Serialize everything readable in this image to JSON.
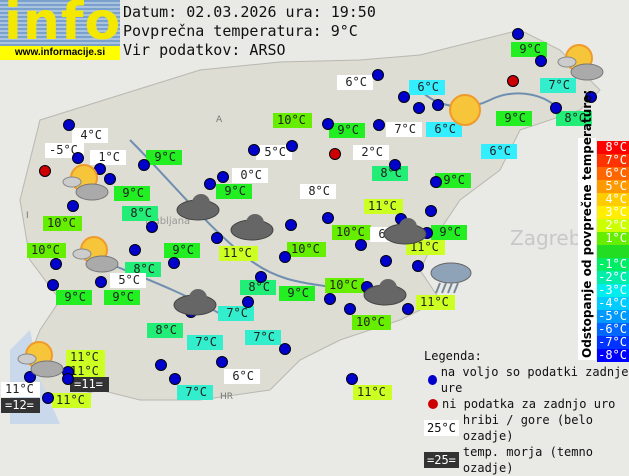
{
  "header": {
    "logo_text": "info",
    "url": "www.informacije.si",
    "date_line": "Datum: 02.03.2026 ura: 19:50",
    "avg_line": "Povprečna temperatura: 9°C",
    "source_line": "Vir podatkov: ARSO"
  },
  "colors": {
    "green": "#22ee22",
    "lgreen": "#66ee00",
    "ygreen": "#ccff22",
    "tgreen": "#22ee77",
    "teal": "#33eecc",
    "cyan": "#33eeff",
    "white": "#ffffff",
    "dark": "#333333"
  },
  "stations": [
    {
      "t": "9°C",
      "c": "green"
    },
    {
      "t": "6°C",
      "c": "white"
    },
    {
      "t": "6°C",
      "c": "cyan"
    },
    {
      "t": "7°C",
      "c": "teal"
    },
    {
      "t": "10°C",
      "c": "lgreen"
    },
    {
      "t": "9°C",
      "c": "green"
    },
    {
      "t": "7°C",
      "c": "white"
    },
    {
      "t": "6°C",
      "c": "cyan"
    },
    {
      "t": "9°C",
      "c": "green"
    },
    {
      "t": "8°C",
      "c": "tgreen"
    },
    {
      "t": "4°C",
      "c": "white"
    },
    {
      "t": "-5°C",
      "c": "white"
    },
    {
      "t": "1°C",
      "c": "white"
    },
    {
      "t": "9°C",
      "c": "green"
    },
    {
      "t": "5°C",
      "c": "white"
    },
    {
      "t": "2°C",
      "c": "white"
    },
    {
      "t": "6°C",
      "c": "cyan"
    },
    {
      "t": "0°C",
      "c": "white"
    },
    {
      "t": "8°C",
      "c": "tgreen"
    },
    {
      "t": "9°C",
      "c": "green"
    },
    {
      "t": "9°C",
      "c": "green"
    },
    {
      "t": "9°C",
      "c": "green"
    },
    {
      "t": "8°C",
      "c": "white"
    },
    {
      "t": "8°C",
      "c": "tgreen"
    },
    {
      "t": "11°C",
      "c": "ygreen"
    },
    {
      "t": "10°C",
      "c": "lgreen"
    },
    {
      "t": "10°C",
      "c": "lgreen"
    },
    {
      "t": "6°C",
      "c": "white"
    },
    {
      "t": "9°C",
      "c": "green"
    },
    {
      "t": "10°C",
      "c": "lgreen"
    },
    {
      "t": "9°C",
      "c": "green"
    },
    {
      "t": "11°C",
      "c": "ygreen"
    },
    {
      "t": "10°C",
      "c": "lgreen"
    },
    {
      "t": "11°C",
      "c": "ygreen"
    },
    {
      "t": "8°C",
      "c": "tgreen"
    },
    {
      "t": "5°C",
      "c": "white"
    },
    {
      "t": "9°C",
      "c": "green"
    },
    {
      "t": "9°C",
      "c": "green"
    },
    {
      "t": "8°C",
      "c": "tgreen"
    },
    {
      "t": "9°C",
      "c": "green"
    },
    {
      "t": "10°C",
      "c": "lgreen"
    },
    {
      "t": "11°C",
      "c": "ygreen"
    },
    {
      "t": "7°C",
      "c": "teal"
    },
    {
      "t": "8°C",
      "c": "tgreen"
    },
    {
      "t": "7°C",
      "c": "teal"
    },
    {
      "t": "7°C",
      "c": "teal"
    },
    {
      "t": "10°C",
      "c": "lgreen"
    },
    {
      "t": "11°C",
      "c": "ygreen"
    },
    {
      "t": "11°C",
      "c": "ygreen"
    },
    {
      "t": "=11=",
      "c": "dark"
    },
    {
      "t": "11°C",
      "c": "white"
    },
    {
      "t": "=12=",
      "c": "dark"
    },
    {
      "t": "11°C",
      "c": "ygreen"
    },
    {
      "t": "6°C",
      "c": "white"
    },
    {
      "t": "7°C",
      "c": "teal"
    },
    {
      "t": "11°C",
      "c": "ygreen"
    }
  ],
  "scale": {
    "title": "Odstopanje od povprečne temperature:",
    "steps": [
      {
        "label": "8°C",
        "color": "#ff0000"
      },
      {
        "label": "7°C",
        "color": "#ff3300"
      },
      {
        "label": "6°C",
        "color": "#ff6600"
      },
      {
        "label": "5°C",
        "color": "#ff9900"
      },
      {
        "label": "4°C",
        "color": "#ffcc00"
      },
      {
        "label": "3°C",
        "color": "#ffee00"
      },
      {
        "label": "2°C",
        "color": "#ccff00"
      },
      {
        "label": "1°C",
        "color": "#66ee00"
      },
      {
        "label": "",
        "color": "#22dd22"
      },
      {
        "label": "-1°C",
        "color": "#00ee66"
      },
      {
        "label": "-2°C",
        "color": "#00eeaa"
      },
      {
        "label": "-3°C",
        "color": "#00eeee"
      },
      {
        "label": "-4°C",
        "color": "#00ccff"
      },
      {
        "label": "-5°C",
        "color": "#0099ff"
      },
      {
        "label": "-6°C",
        "color": "#0066ff"
      },
      {
        "label": "-7°C",
        "color": "#0033ff"
      },
      {
        "label": "-8°C",
        "color": "#0000ff"
      }
    ]
  },
  "legend": {
    "title": "Legenda:",
    "blue_dot": "na voljo so podatki zadnje ure",
    "red_dot": "ni podatka za zadnjo uro",
    "white_sample": "25°C",
    "white_text": "hribi / gore (belo ozadje)",
    "dark_sample": "=25=",
    "dark_text": "temp. morja (temno ozadje)"
  },
  "map_labels": {
    "zagreb": "Zagreb",
    "ljubljana": "Ljubljana",
    "hr": "HR",
    "a": "A",
    "i": "I"
  }
}
